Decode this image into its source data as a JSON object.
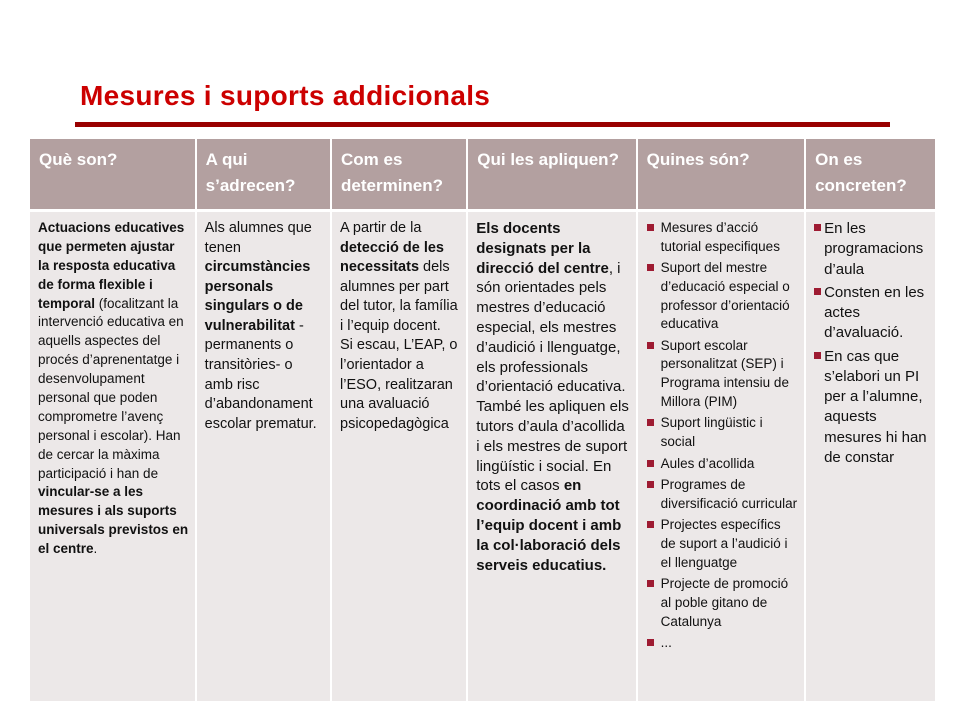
{
  "title": "Mesures i suports addicionals",
  "colors": {
    "title_red": "#cc0000",
    "rule_red": "#990000",
    "header_bg": "#b3a0a0",
    "header_text": "#ffffff",
    "cell_bg": "#ece8e8",
    "body_text": "#111111",
    "bullet": "#9e1b32"
  },
  "table": {
    "headers": [
      "Què son?",
      "A qui s’adrecen?",
      "Com es determinen?",
      "Qui les apliquen?",
      "Quines són?",
      "On es concreten?"
    ],
    "cells": [
      {
        "type": "rich",
        "blocks": [
          [
            {
              "t": "Actuacions educatives que permeten ajustar la resposta educativa de forma flexible i temporal",
              "b": 1
            },
            {
              "t": " (focalitzant la intervenció educativa en aquells aspectes del procés d’aprenentatge i desenvolupament personal que poden comprometre l’avenç personal i escolar). Han de cercar la màxima participació i han de ",
              "b": 0
            },
            {
              "t": "vincular-se a les mesures i als suports universals previstos en el centre",
              "b": 1
            },
            {
              "t": ".",
              "b": 0
            }
          ]
        ]
      },
      {
        "type": "rich",
        "blocks": [
          [
            {
              "t": "Als alumnes que tenen ",
              "b": 0
            },
            {
              "t": "circumstàncies personals singulars o de vulnerabilitat",
              "b": 1
            },
            {
              "t": " -permanents o transitòries- o amb risc d’abandonament escolar prematur.",
              "b": 0
            }
          ]
        ]
      },
      {
        "type": "rich",
        "blocks": [
          [
            {
              "t": "A partir de la ",
              "b": 0
            },
            {
              "t": "detecció de les necessitats",
              "b": 1
            },
            {
              "t": " dels alumnes per part del tutor,  la família i l’equip docent.",
              "b": 0
            }
          ],
          [
            {
              "t": "Si escau, L’EAP, o l’orientador a l’ESO, realitzaran una avaluació psicopedagògica",
              "b": 0
            }
          ]
        ]
      },
      {
        "type": "rich",
        "blocks": [
          [
            {
              "t": "Els docents designats per la direcció del centre",
              "b": 1
            },
            {
              "t": ", i són orientades pels mestres d’educació especial, els mestres d’audició i llenguatge, els professionals d’orientació educativa. També les apliquen els tutors d’aula d’acollida i els mestres de suport lingüístic i social. En tots  el casos ",
              "b": 0
            },
            {
              "t": "en coordinació amb tot l’equip docent i amb la col·laboració dels serveis educatius.",
              "b": 1
            }
          ]
        ]
      },
      {
        "type": "bullets",
        "items": [
          "Mesures d’acció tutorial  especifiques",
          "Suport del mestre d’educació especial  o professor d’orientació educativa",
          "Suport escolar personalitzat  (SEP) i Programa intensiu  de Millora (PIM)",
          "Suport lingüistic  i social",
          "Aules d’acollida",
          "Programes de diversificació curricular",
          "Projectes específics de suport a l’audició i el llenguatge",
          "Projecte de promoció al poble gitano de Catalunya",
          "..."
        ]
      },
      {
        "type": "bullets",
        "items": [
          "En les programacions d’aula",
          "Consten en les actes d’avaluació.",
          "En cas que s’elabori un PI per a l’alumne, aquests mesures hi han de constar"
        ]
      }
    ]
  }
}
